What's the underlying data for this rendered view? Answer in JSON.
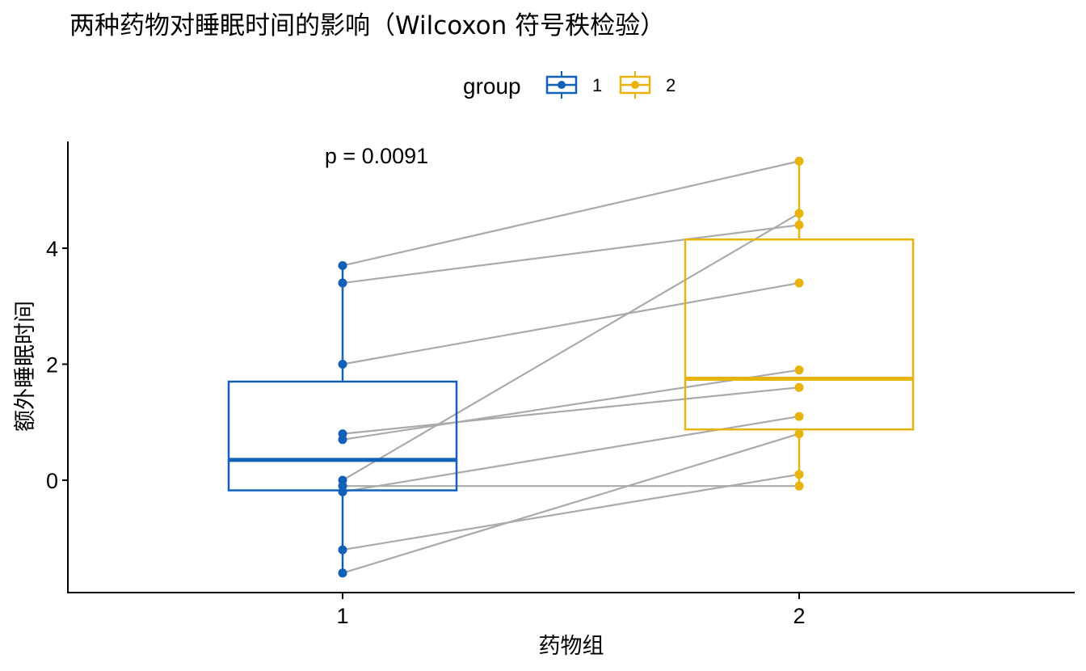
{
  "chart_data": {
    "type": "box",
    "title": "两种药物对睡眠时间的影响（Wilcoxon 符号秩检验）",
    "xlabel": "药物组",
    "ylabel": "额外睡眠时间",
    "categories": [
      "1",
      "2"
    ],
    "yticks": [
      0,
      2,
      4
    ],
    "ylim": [
      -1.9,
      5.9
    ],
    "legend": {
      "title": "group",
      "position": "top",
      "entries": [
        {
          "label": "1",
          "color": "#1261b8"
        },
        {
          "label": "2",
          "color": "#e8b40c"
        }
      ]
    },
    "annotation": "p = 0.0091",
    "annotation_x": "1",
    "annotation_y": 5.6,
    "grid": false,
    "series": [
      {
        "name": "1",
        "color": "#1261b8",
        "values": [
          0.7,
          -1.6,
          -0.2,
          -1.2,
          -0.1,
          3.4,
          3.7,
          0.8,
          0.0,
          2.0
        ],
        "box": {
          "whisker_low": -1.6,
          "q1": -0.175,
          "median": 0.35,
          "q3": 1.7,
          "whisker_high": 3.7
        }
      },
      {
        "name": "2",
        "color": "#e8b40c",
        "values": [
          1.9,
          0.8,
          1.1,
          0.1,
          -0.1,
          4.4,
          5.5,
          1.6,
          4.6,
          3.4
        ],
        "box": {
          "whisker_low": -0.1,
          "q1": 0.875,
          "median": 1.75,
          "q3": 4.15,
          "whisker_high": 5.5
        }
      }
    ],
    "pair_line_color": "#aaaaaa"
  }
}
